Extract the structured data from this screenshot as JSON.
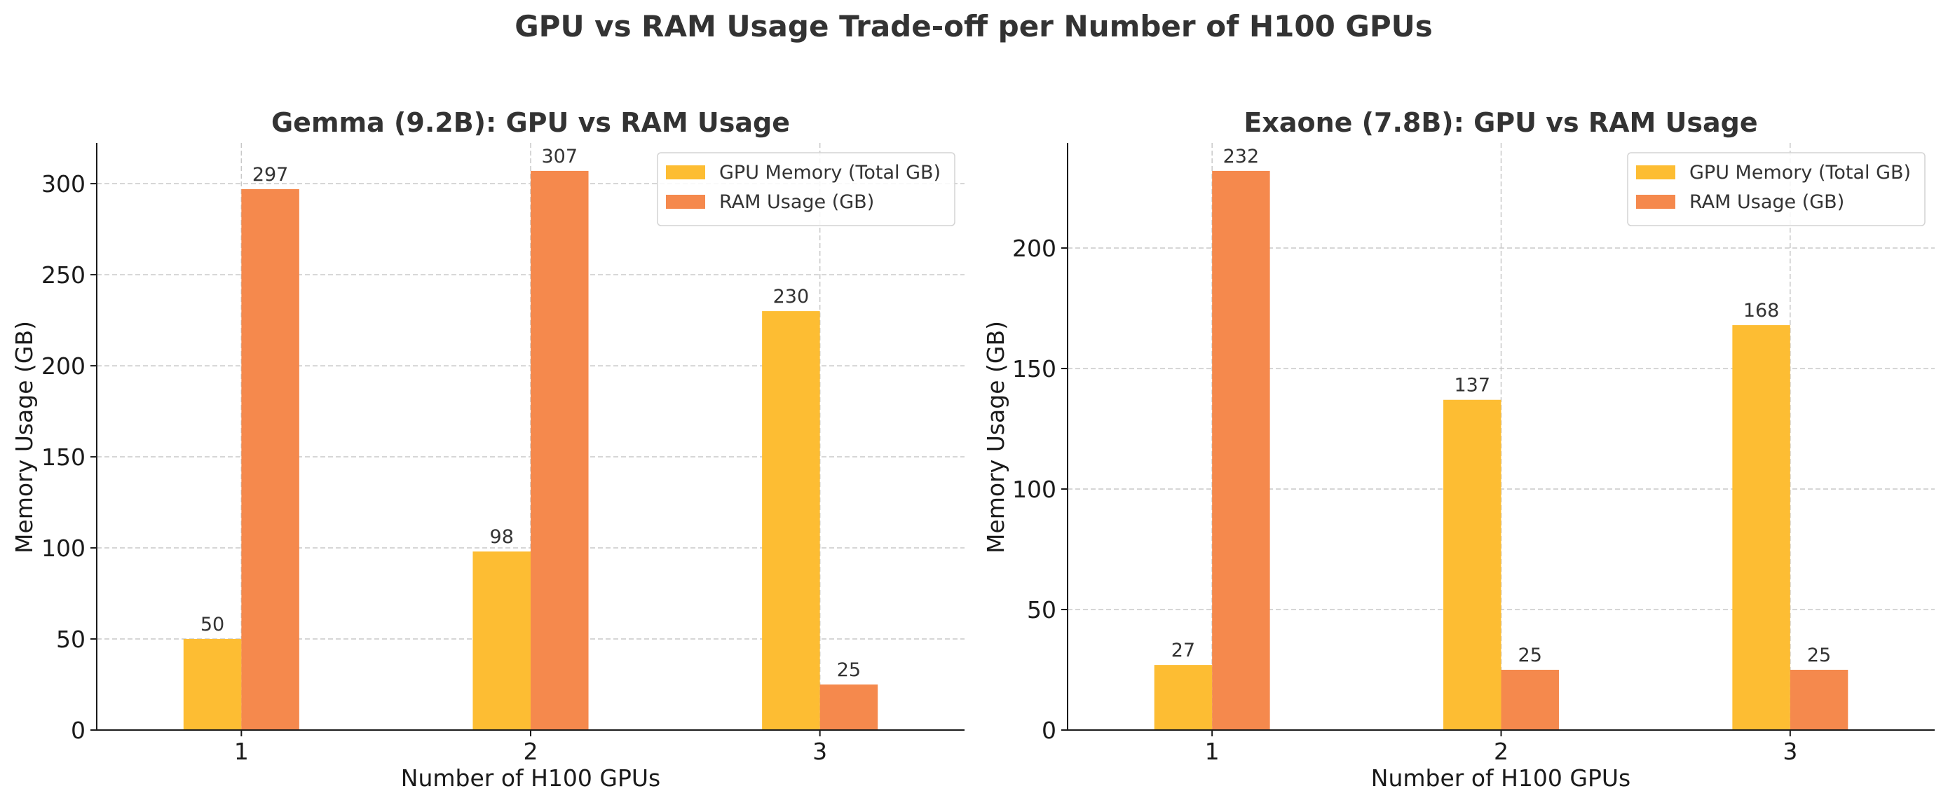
{
  "figure": {
    "suptitle": "GPU vs RAM Usage Trade-off per Number of H100 GPUs"
  },
  "colors": {
    "gpu": "#FDBD33",
    "ram": "#F5894D",
    "grid": "#c8c8c8",
    "axis": "#1a1a1a"
  },
  "chart_data": [
    {
      "type": "bar",
      "title": "Gemma (9.2B): GPU vs RAM Usage",
      "xlabel": "Number of H100 GPUs",
      "ylabel": "Memory Usage (GB)",
      "categories": [
        "1",
        "2",
        "3"
      ],
      "series": [
        {
          "name": "GPU Memory (Total GB)",
          "values": [
            50,
            98,
            230
          ]
        },
        {
          "name": "RAM Usage (GB)",
          "values": [
            297,
            307,
            25
          ]
        }
      ],
      "ylim": [
        0,
        322.35
      ],
      "yticks": [
        0,
        50,
        100,
        150,
        200,
        250,
        300
      ],
      "grid": true,
      "legend": "upper right"
    },
    {
      "type": "bar",
      "title": "Exaone (7.8B): GPU vs RAM Usage",
      "xlabel": "Number of H100 GPUs",
      "ylabel": "Memory Usage (GB)",
      "categories": [
        "1",
        "2",
        "3"
      ],
      "series": [
        {
          "name": "GPU Memory (Total GB)",
          "values": [
            27,
            137,
            168
          ]
        },
        {
          "name": "RAM Usage (GB)",
          "values": [
            232,
            25,
            25
          ]
        }
      ],
      "ylim": [
        0,
        243.6
      ],
      "yticks": [
        0,
        50,
        100,
        150,
        200
      ],
      "grid": true,
      "legend": "upper right"
    }
  ]
}
